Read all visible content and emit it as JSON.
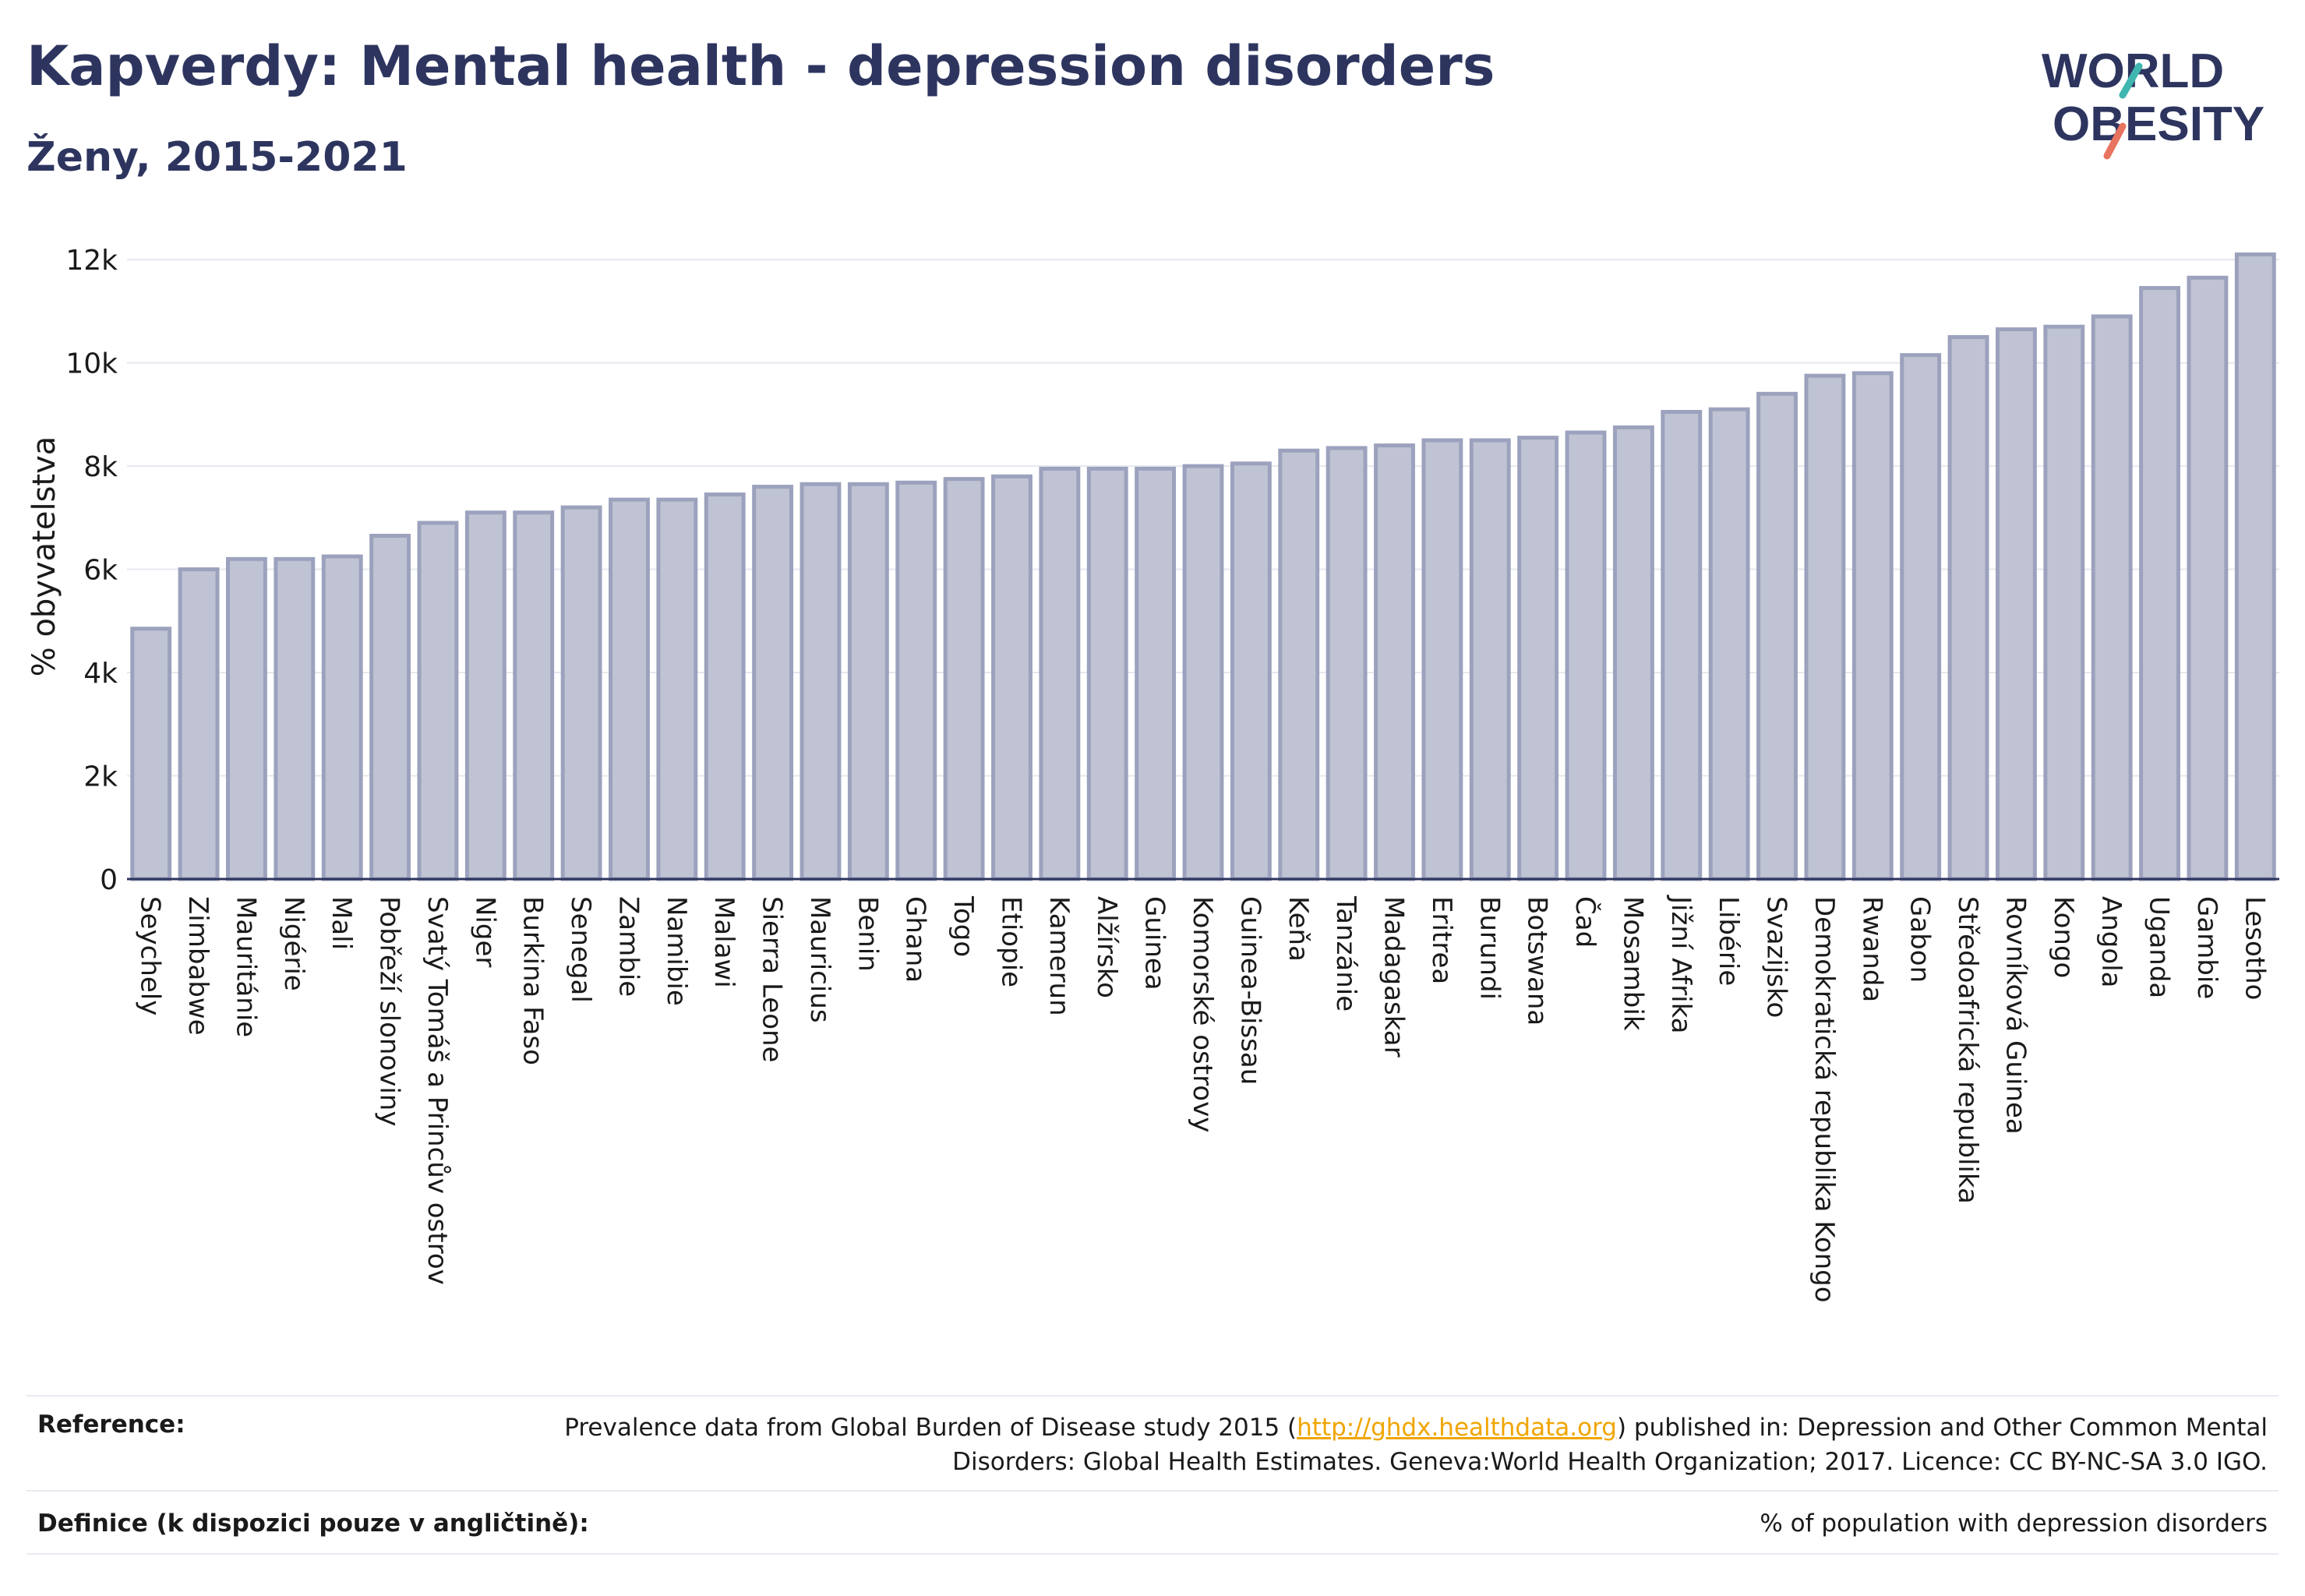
{
  "title": "Kapverdy: Mental health - depression disorders",
  "subtitle": "Ženy, 2015-2021",
  "logo": {
    "line1": "WORLD",
    "line2": "OBESITY",
    "colors": {
      "text": "#2d355f",
      "slash_teal": "#3fb6b0",
      "slash_coral": "#e8735e"
    }
  },
  "chart_data": {
    "type": "bar",
    "title": "Kapverdy: Mental health - depression disorders",
    "subtitle": "Ženy, 2015-2021",
    "xlabel": "",
    "ylabel": "% obyvatelstva",
    "ylim": [
      0,
      12500
    ],
    "yticks": [
      0,
      2000,
      4000,
      6000,
      8000,
      10000,
      12000
    ],
    "ytick_labels": [
      "0",
      "2k",
      "4k",
      "6k",
      "8k",
      "10k",
      "12k"
    ],
    "grid": true,
    "bar_fill": "#bfc3d3",
    "bar_stroke": "#9ca2bd",
    "categories": [
      "Seychely",
      "Zimbabwe",
      "Mauritánie",
      "Nigérie",
      "Mali",
      "Pobřeží slonoviny",
      "Svatý Tomáš a Princův ostrov",
      "Niger",
      "Burkina Faso",
      "Senegal",
      "Zambie",
      "Namibie",
      "Malawi",
      "Sierra Leone",
      "Mauricius",
      "Benin",
      "Ghana",
      "Togo",
      "Etiopie",
      "Kamerun",
      "Alžírsko",
      "Guinea",
      "Komorské ostrovy",
      "Guinea-Bissau",
      "Keňa",
      "Tanzánie",
      "Madagaskar",
      "Eritrea",
      "Burundi",
      "Botswana",
      "Čad",
      "Mosambik",
      "Jižní Afrika",
      "Libérie",
      "Svazijsko",
      "Demokratická republika Kongo",
      "Rwanda",
      "Gabon",
      "Středoafrická republika",
      "Rovníková Guinea",
      "Kongo",
      "Angola",
      "Uganda",
      "Gambie",
      "Lesotho"
    ],
    "values": [
      4850,
      6000,
      6200,
      6200,
      6250,
      6650,
      6900,
      7100,
      7100,
      7200,
      7350,
      7350,
      7450,
      7600,
      7650,
      7650,
      7680,
      7750,
      7800,
      7950,
      7950,
      7950,
      8000,
      8050,
      8300,
      8350,
      8400,
      8500,
      8500,
      8550,
      8650,
      8750,
      9050,
      9100,
      9400,
      9750,
      9800,
      10150,
      10500,
      10650,
      10700,
      10900,
      11450,
      11650,
      12100
    ]
  },
  "footer": {
    "reference_label": "Reference:",
    "reference_text_before": "Prevalence data from Global Burden of Disease study 2015 (",
    "reference_link": "http://ghdx.healthdata.org",
    "reference_text_after": ") published in: Depression and Other Common Mental Disorders: Global Health Estimates. Geneva:World Health Organization; 2017. Licence: CC BY-NC-SA 3.0 IGO.",
    "definition_label": "Definice (k dispozici pouze v angličtině):",
    "definition_text": "% of population with depression disorders"
  }
}
